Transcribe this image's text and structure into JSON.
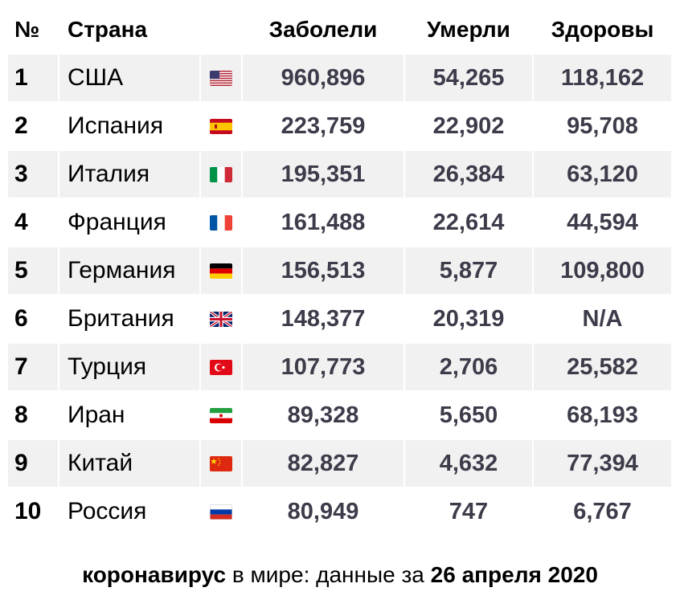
{
  "header": {
    "num": "№",
    "country": "Страна",
    "cases": "Заболели",
    "deaths": "Умерли",
    "recovered": "Здоровы"
  },
  "rows": [
    {
      "num": "1",
      "country": "США",
      "flag": "usa-flag-icon",
      "cases": "960,896",
      "deaths": "54,265",
      "recovered": "118,162"
    },
    {
      "num": "2",
      "country": "Испания",
      "flag": "spain-flag-icon",
      "cases": "223,759",
      "deaths": "22,902",
      "recovered": "95,708"
    },
    {
      "num": "3",
      "country": "Италия",
      "flag": "italy-flag-icon",
      "cases": "195,351",
      "deaths": "26,384",
      "recovered": "63,120"
    },
    {
      "num": "4",
      "country": "Франция",
      "flag": "france-flag-icon",
      "cases": "161,488",
      "deaths": "22,614",
      "recovered": "44,594"
    },
    {
      "num": "5",
      "country": "Германия",
      "flag": "germany-flag-icon",
      "cases": "156,513",
      "deaths": "5,877",
      "recovered": "109,800"
    },
    {
      "num": "6",
      "country": "Британия",
      "flag": "uk-flag-icon",
      "cases": "148,377",
      "deaths": "20,319",
      "recovered": "N/A"
    },
    {
      "num": "7",
      "country": "Турция",
      "flag": "turkey-flag-icon",
      "cases": "107,773",
      "deaths": "2,706",
      "recovered": "25,582"
    },
    {
      "num": "8",
      "country": "Иран",
      "flag": "iran-flag-icon",
      "cases": "89,328",
      "deaths": "5,650",
      "recovered": "68,193"
    },
    {
      "num": "9",
      "country": "Китай",
      "flag": "china-flag-icon",
      "cases": "82,827",
      "deaths": "4,632",
      "recovered": "77,394"
    },
    {
      "num": "10",
      "country": "Россия",
      "flag": "russia-flag-icon",
      "cases": "80,949",
      "deaths": "747",
      "recovered": "6,767"
    }
  ],
  "caption": {
    "part1": "коронавирус",
    "part2": " в мире: данные за ",
    "part3": "26 апреля 2020"
  },
  "colors": {
    "stripe": "#f1f1f1",
    "value_text": "#3c3c4a"
  }
}
